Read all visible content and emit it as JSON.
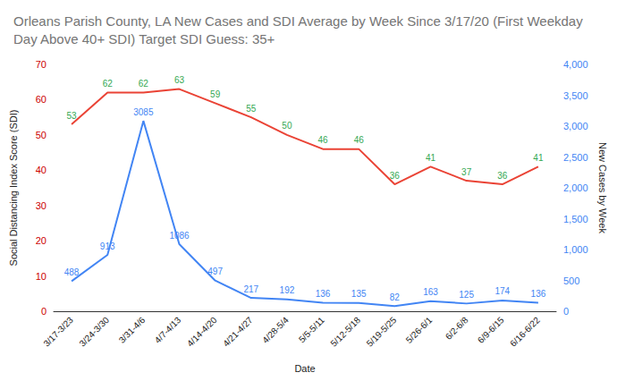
{
  "chart_data": {
    "type": "line",
    "title": "Orleans Parish County, LA New Cases and SDI Average by Week Since 3/17/20 (First Weekday Day Above 40+ SDI) Target SDI Guess: 35+",
    "x_label": "Date",
    "y_label": "Social Distancing Index Score (SDI)",
    "y2_label": "New Cases by Week",
    "categories": [
      "3/17-3/23",
      "3/24-3/30",
      "3/31-4/6",
      "4/7-4/13",
      "4/14-4/20",
      "4/21-4/27",
      "4/28-5/4",
      "5/5-5/11",
      "5/12-5/18",
      "5/19-5/25",
      "5/26-6/1",
      "6/2-6/8",
      "6/9-6/15",
      "6/16-6/22"
    ],
    "series": [
      {
        "color": "#ea4335",
        "axis": "y",
        "values": [
          53,
          62,
          62,
          63,
          59,
          55,
          50,
          46,
          46,
          36,
          41,
          37,
          36,
          41
        ]
      },
      {
        "color": "#4285f4",
        "axis": "y2",
        "values": [
          488,
          913,
          3085,
          1086,
          497,
          217,
          192,
          136,
          135,
          82,
          163,
          125,
          174,
          136
        ]
      }
    ],
    "ylim": [
      0,
      70
    ],
    "yticks": [
      0,
      10,
      20,
      30,
      40,
      50,
      60,
      70
    ],
    "y2lim": [
      0,
      4000
    ],
    "y2ticks": [
      0,
      500,
      1000,
      1500,
      2000,
      2500,
      3000,
      3500,
      4000
    ],
    "grid": false,
    "data_labels": true
  }
}
